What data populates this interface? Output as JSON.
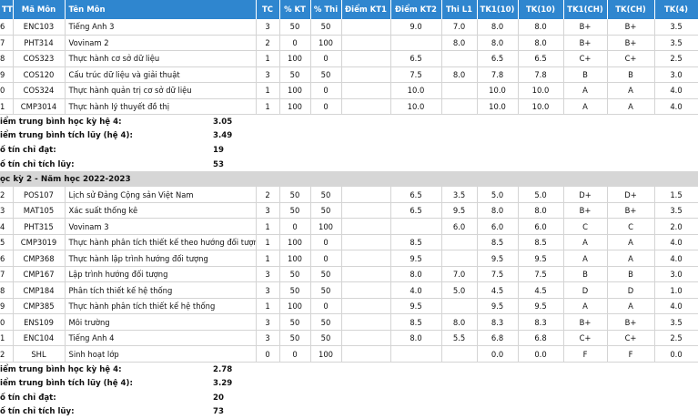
{
  "headers": {
    "stt": "TT",
    "code": "Mã Môn",
    "name": "Tên Môn",
    "tc": "TC",
    "kt": "% KT",
    "thi": "% Thi",
    "kt1": "Điểm KT1",
    "kt2": "Điểm KT2",
    "l1": "Thi L1",
    "tk10a": "TK1(10)",
    "tk10b": "TK(10)",
    "tk1ch": "TK1(CH)",
    "tkch": "TK(CH)",
    "tk4": "TK(4)"
  },
  "block1": {
    "rows": [
      {
        "stt": "6",
        "code": "ENC103",
        "name": "Tiếng Anh 3",
        "tc": "3",
        "kt": "50",
        "thi": "50",
        "kt1": "",
        "kt2": "9.0",
        "l1": "7.0",
        "tk10a": "8.0",
        "tk10b": "8.0",
        "tk1ch": "B+",
        "tkch": "B+",
        "tk4": "3.5"
      },
      {
        "stt": "7",
        "code": "PHT314",
        "name": "Vovinam 2",
        "tc": "2",
        "kt": "0",
        "thi": "100",
        "kt1": "",
        "kt2": "",
        "l1": "8.0",
        "tk10a": "8.0",
        "tk10b": "8.0",
        "tk1ch": "B+",
        "tkch": "B+",
        "tk4": "3.5"
      },
      {
        "stt": "8",
        "code": "COS323",
        "name": "Thực hành cơ sở dữ liệu",
        "tc": "1",
        "kt": "100",
        "thi": "0",
        "kt1": "",
        "kt2": "6.5",
        "l1": "",
        "tk10a": "6.5",
        "tk10b": "6.5",
        "tk1ch": "C+",
        "tkch": "C+",
        "tk4": "2.5"
      },
      {
        "stt": "9",
        "code": "COS120",
        "name": "Cấu trúc dữ liệu và giải thuật",
        "tc": "3",
        "kt": "50",
        "thi": "50",
        "kt1": "",
        "kt2": "7.5",
        "l1": "8.0",
        "tk10a": "7.8",
        "tk10b": "7.8",
        "tk1ch": "B",
        "tkch": "B",
        "tk4": "3.0"
      },
      {
        "stt": "0",
        "code": "COS324",
        "name": "Thực hành quản trị cơ sở dữ liệu",
        "tc": "1",
        "kt": "100",
        "thi": "0",
        "kt1": "",
        "kt2": "10.0",
        "l1": "",
        "tk10a": "10.0",
        "tk10b": "10.0",
        "tk1ch": "A",
        "tkch": "A",
        "tk4": "4.0"
      },
      {
        "stt": "1",
        "code": "CMP3014",
        "name": "Thực hành lý thuyết đồ thị",
        "tc": "1",
        "kt": "100",
        "thi": "0",
        "kt1": "",
        "kt2": "10.0",
        "l1": "",
        "tk10a": "10.0",
        "tk10b": "10.0",
        "tk1ch": "A",
        "tkch": "A",
        "tk4": "4.0"
      }
    ],
    "summary": [
      {
        "label": "iểm trung bình học kỳ hệ 4:",
        "value": "3.05"
      },
      {
        "label": "iểm trung bình tích lũy (hệ 4):",
        "value": "3.49"
      },
      {
        "label": "ố tín chỉ đạt:",
        "value": "19"
      },
      {
        "label": "ố tín chỉ tích lũy:",
        "value": "53"
      }
    ]
  },
  "semester2_title": "ọc kỳ 2 - Năm học 2022-2023",
  "block2": {
    "rows": [
      {
        "stt": "2",
        "code": "POS107",
        "name": "Lịch sử Đảng Cộng sản Việt Nam",
        "tc": "2",
        "kt": "50",
        "thi": "50",
        "kt1": "",
        "kt2": "6.5",
        "l1": "3.5",
        "tk10a": "5.0",
        "tk10b": "5.0",
        "tk1ch": "D+",
        "tkch": "D+",
        "tk4": "1.5"
      },
      {
        "stt": "3",
        "code": "MAT105",
        "name": "Xác suất thống kê",
        "tc": "3",
        "kt": "50",
        "thi": "50",
        "kt1": "",
        "kt2": "6.5",
        "l1": "9.5",
        "tk10a": "8.0",
        "tk10b": "8.0",
        "tk1ch": "B+",
        "tkch": "B+",
        "tk4": "3.5"
      },
      {
        "stt": "4",
        "code": "PHT315",
        "name": "Vovinam 3",
        "tc": "1",
        "kt": "0",
        "thi": "100",
        "kt1": "",
        "kt2": "",
        "l1": "6.0",
        "tk10a": "6.0",
        "tk10b": "6.0",
        "tk1ch": "C",
        "tkch": "C",
        "tk4": "2.0"
      },
      {
        "stt": "5",
        "code": "CMP3019",
        "name": "Thực hành phân tích thiết kế theo hướng đối tượng",
        "tc": "1",
        "kt": "100",
        "thi": "0",
        "kt1": "",
        "kt2": "8.5",
        "l1": "",
        "tk10a": "8.5",
        "tk10b": "8.5",
        "tk1ch": "A",
        "tkch": "A",
        "tk4": "4.0"
      },
      {
        "stt": "6",
        "code": "CMP368",
        "name": "Thực hành lập trình hướng đối tượng",
        "tc": "1",
        "kt": "100",
        "thi": "0",
        "kt1": "",
        "kt2": "9.5",
        "l1": "",
        "tk10a": "9.5",
        "tk10b": "9.5",
        "tk1ch": "A",
        "tkch": "A",
        "tk4": "4.0"
      },
      {
        "stt": "7",
        "code": "CMP167",
        "name": "Lập trình hướng đối tượng",
        "tc": "3",
        "kt": "50",
        "thi": "50",
        "kt1": "",
        "kt2": "8.0",
        "l1": "7.0",
        "tk10a": "7.5",
        "tk10b": "7.5",
        "tk1ch": "B",
        "tkch": "B",
        "tk4": "3.0"
      },
      {
        "stt": "8",
        "code": "CMP184",
        "name": "Phân tích thiết kế hệ thống",
        "tc": "3",
        "kt": "50",
        "thi": "50",
        "kt1": "",
        "kt2": "4.0",
        "l1": "5.0",
        "tk10a": "4.5",
        "tk10b": "4.5",
        "tk1ch": "D",
        "tkch": "D",
        "tk4": "1.0"
      },
      {
        "stt": "9",
        "code": "CMP385",
        "name": "Thực hành phân tích thiết kế hệ thống",
        "tc": "1",
        "kt": "100",
        "thi": "0",
        "kt1": "",
        "kt2": "9.5",
        "l1": "",
        "tk10a": "9.5",
        "tk10b": "9.5",
        "tk1ch": "A",
        "tkch": "A",
        "tk4": "4.0"
      },
      {
        "stt": "0",
        "code": "ENS109",
        "name": "Môi trường",
        "tc": "3",
        "kt": "50",
        "thi": "50",
        "kt1": "",
        "kt2": "8.5",
        "l1": "8.0",
        "tk10a": "8.3",
        "tk10b": "8.3",
        "tk1ch": "B+",
        "tkch": "B+",
        "tk4": "3.5"
      },
      {
        "stt": "1",
        "code": "ENC104",
        "name": "Tiếng Anh 4",
        "tc": "3",
        "kt": "50",
        "thi": "50",
        "kt1": "",
        "kt2": "8.0",
        "l1": "5.5",
        "tk10a": "6.8",
        "tk10b": "6.8",
        "tk1ch": "C+",
        "tkch": "C+",
        "tk4": "2.5"
      },
      {
        "stt": "2",
        "code": "SHL",
        "name": "Sinh hoạt lớp",
        "tc": "0",
        "kt": "0",
        "thi": "100",
        "kt1": "",
        "kt2": "",
        "l1": "",
        "tk10a": "0.0",
        "tk10b": "0.0",
        "tk1ch": "F",
        "tkch": "F",
        "tk4": "0.0"
      }
    ],
    "summary": [
      {
        "label": "iểm trung bình học kỳ hệ 4:",
        "value": "2.78"
      },
      {
        "label": "iểm trung bình tích lũy (hệ 4):",
        "value": "3.29"
      },
      {
        "label": "ố tín chỉ đạt:",
        "value": "20"
      },
      {
        "label": "ố tín chỉ tích lũy:",
        "value": "73"
      }
    ]
  }
}
